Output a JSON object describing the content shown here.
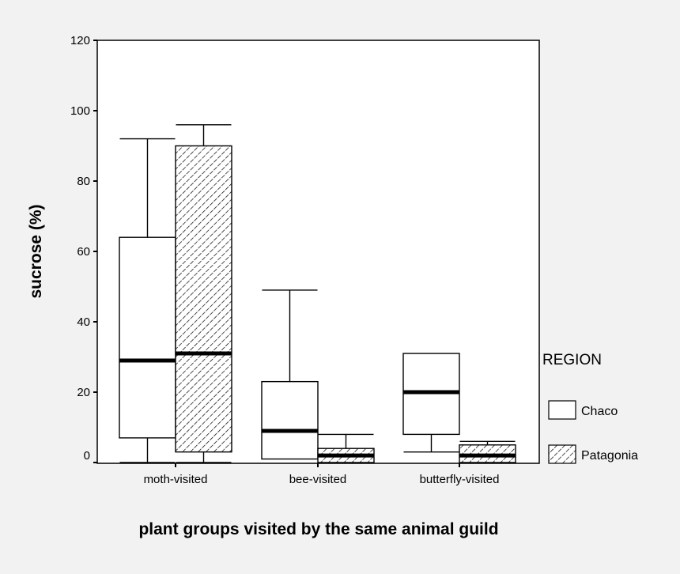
{
  "chart_data": {
    "type": "box",
    "xlabel": "plant groups visited by the same animal guild",
    "ylabel": "sucrose (%)",
    "ylim": [
      0,
      120
    ],
    "y_ticks": [
      "0",
      "20",
      "40",
      "60",
      "80",
      "100",
      "120"
    ],
    "categories": [
      "moth-visited",
      "bee-visited",
      "butterfly-visited"
    ],
    "legend": {
      "title": "REGION",
      "position": "right",
      "entries": [
        {
          "label": "Chaco",
          "fill": "white"
        },
        {
          "label": "Patagonia",
          "fill": "hatched"
        }
      ]
    },
    "series": [
      {
        "name": "Chaco",
        "boxes": [
          {
            "min": 0,
            "q1": 7,
            "median": 29,
            "q3": 64,
            "max": 92
          },
          {
            "min": 1,
            "q1": 1,
            "median": 9,
            "q3": 23,
            "max": 49
          },
          {
            "min": 3,
            "q1": 8,
            "median": 20,
            "q3": 31,
            "max": 31
          }
        ]
      },
      {
        "name": "Patagonia",
        "boxes": [
          {
            "min": 0,
            "q1": 3,
            "median": 31,
            "q3": 90,
            "max": 96
          },
          {
            "min": 0,
            "q1": 0,
            "median": 2,
            "q3": 4,
            "max": 8
          },
          {
            "min": 0,
            "q1": 0,
            "median": 2,
            "q3": 5,
            "max": 6
          }
        ]
      }
    ]
  },
  "colors": {
    "background": "#f2f2f2",
    "plot_background": "#ffffff",
    "ink": "#000000"
  }
}
